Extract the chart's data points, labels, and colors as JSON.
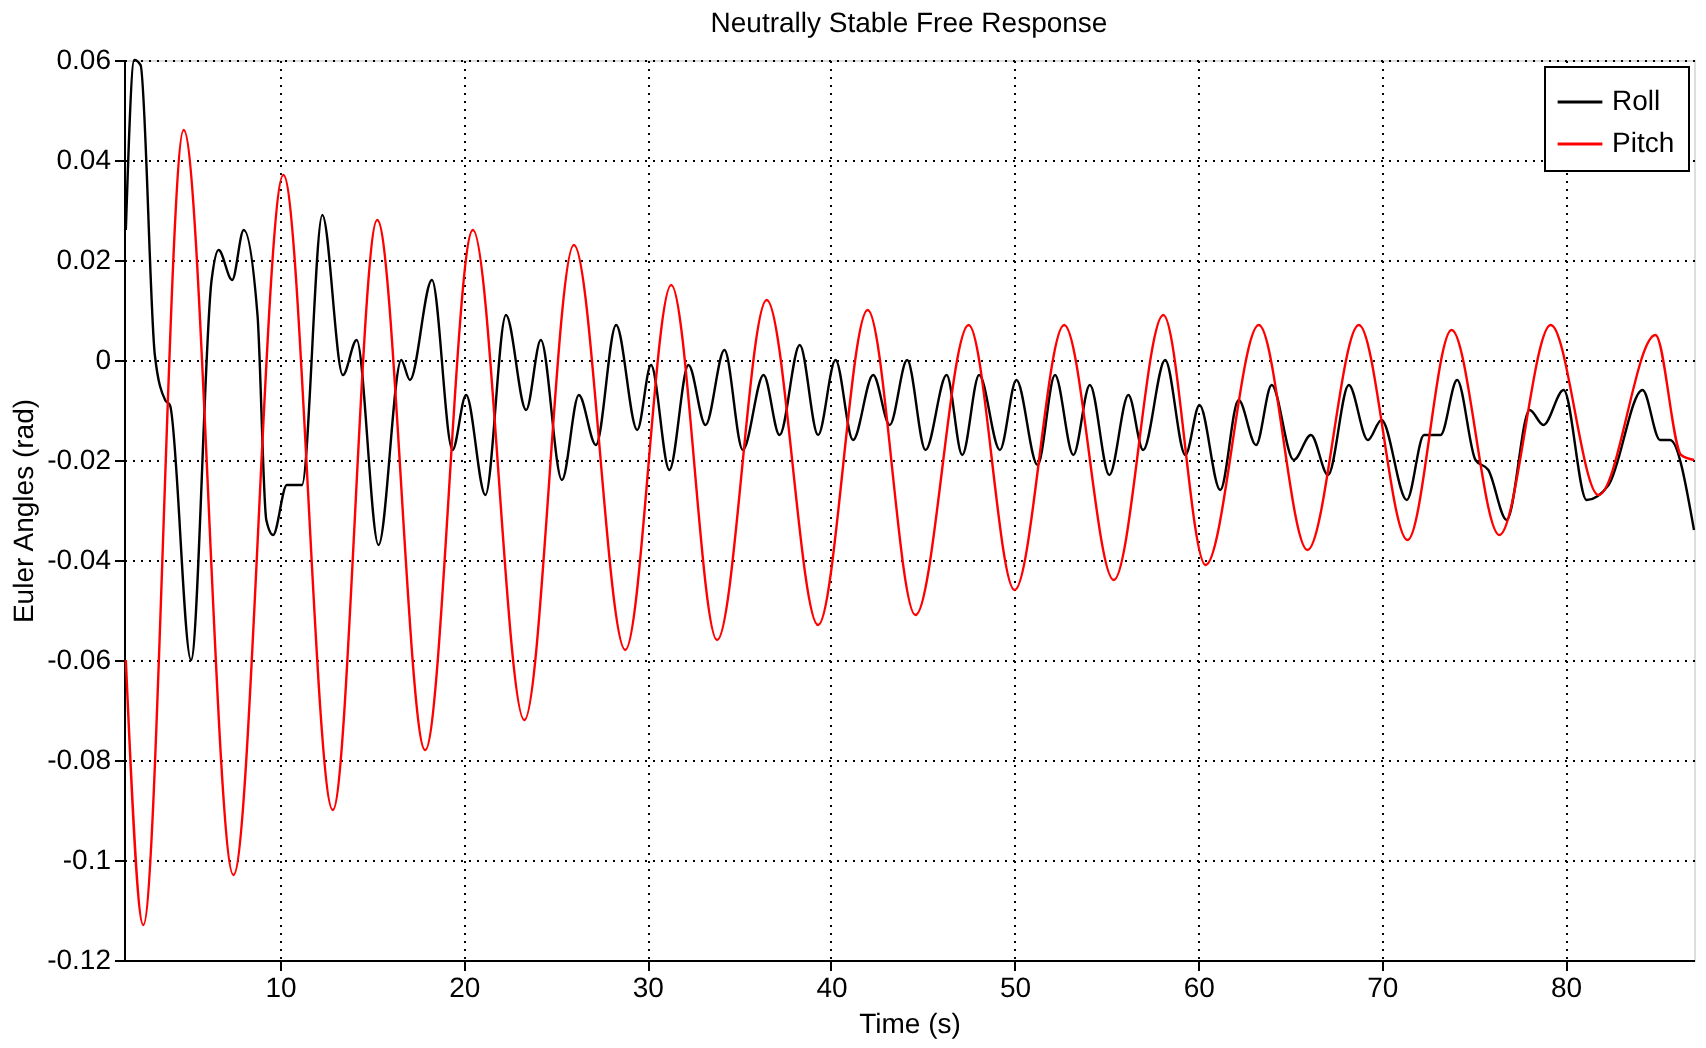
{
  "chart_data": {
    "type": "line",
    "title": "Neutrally Stable Free Response",
    "xlabel": "Time (s)",
    "ylabel": "Euler Angles (rad)",
    "xlim": [
      1.5,
      87
    ],
    "ylim": [
      -0.12,
      0.06
    ],
    "xticks": [
      10,
      20,
      30,
      40,
      50,
      60,
      70,
      80
    ],
    "yticks": [
      -0.12,
      -0.1,
      -0.08,
      -0.06,
      -0.04,
      -0.02,
      0,
      0.02,
      0.04,
      0.06
    ],
    "grid": true,
    "legend": "top right",
    "series": [
      {
        "name": "Roll",
        "color": "#000000",
        "x": [
          1.6,
          2.06,
          2.4,
          3.18,
          3.74,
          4.0,
          5.15,
          6.27,
          6.65,
          7.39,
          8.02,
          8.77,
          9.25,
          9.62,
          10.37,
          11.19,
          12.3,
          13.42,
          14.17,
          15.36,
          16.6,
          17.07,
          18.27,
          19.39,
          20.13,
          21.18,
          22.3,
          23.4,
          24.2,
          25.35,
          26.27,
          27.2,
          28.3,
          29.45,
          30.2,
          31.2,
          32.24,
          33.17,
          34.2,
          35.2,
          36.33,
          37.2,
          38.3,
          39.3,
          40.25,
          41.2,
          42.3,
          43.2,
          44.15,
          45.15,
          46.3,
          47.15,
          48.07,
          49.2,
          50.1,
          51.25,
          52.2,
          53.2,
          54.1,
          55.16,
          56.2,
          57.0,
          58.2,
          59.3,
          60.07,
          61.2,
          62.2,
          63.15,
          64.0,
          65.2,
          66.14,
          67.07,
          68.2,
          69.24,
          69.98,
          71.36,
          72.3,
          73.2,
          74.1,
          75.1,
          75.8,
          76.8,
          78.05,
          78.8,
          79.9,
          81.15,
          82.35,
          84.2,
          85.15,
          85.7,
          87.0
        ],
        "values": [
          0.026,
          0.06,
          0.059,
          0.001,
          -0.008,
          -0.009,
          -0.06,
          0.016,
          0.022,
          0.016,
          0.026,
          0.009,
          -0.032,
          -0.035,
          -0.025,
          -0.025,
          0.029,
          -0.003,
          0.004,
          -0.037,
          0.0,
          -0.004,
          0.016,
          -0.018,
          -0.007,
          -0.027,
          0.009,
          -0.01,
          0.004,
          -0.024,
          -0.007,
          -0.017,
          0.007,
          -0.014,
          -0.001,
          -0.022,
          -0.001,
          -0.013,
          0.002,
          -0.018,
          -0.003,
          -0.015,
          0.003,
          -0.015,
          0.0,
          -0.016,
          -0.003,
          -0.013,
          0.0,
          -0.018,
          -0.003,
          -0.019,
          -0.003,
          -0.018,
          -0.004,
          -0.021,
          -0.003,
          -0.019,
          -0.005,
          -0.023,
          -0.007,
          -0.018,
          0.0,
          -0.019,
          -0.009,
          -0.026,
          -0.008,
          -0.017,
          -0.005,
          -0.02,
          -0.015,
          -0.023,
          -0.005,
          -0.016,
          -0.012,
          -0.028,
          -0.015,
          -0.015,
          -0.004,
          -0.02,
          -0.022,
          -0.032,
          -0.01,
          -0.013,
          -0.006,
          -0.028,
          -0.025,
          -0.006,
          -0.016,
          -0.016,
          -0.034
        ]
      },
      {
        "name": "Pitch",
        "color": "#ff0000",
        "x": [
          1.6,
          2.55,
          4.75,
          7.46,
          10.18,
          12.87,
          15.29,
          17.9,
          20.5,
          23.3,
          26.0,
          28.8,
          31.3,
          33.8,
          36.5,
          39.3,
          42.0,
          44.6,
          47.5,
          50.0,
          52.7,
          55.4,
          58.1,
          60.4,
          63.3,
          65.95,
          68.75,
          71.4,
          73.8,
          76.4,
          79.2,
          81.8,
          84.9,
          86.3,
          87.0
        ],
        "values": [
          -0.06,
          -0.113,
          0.046,
          -0.103,
          0.037,
          -0.09,
          0.028,
          -0.078,
          0.026,
          -0.072,
          0.023,
          -0.058,
          0.015,
          -0.056,
          0.012,
          -0.053,
          0.01,
          -0.051,
          0.007,
          -0.046,
          0.007,
          -0.044,
          0.009,
          -0.041,
          0.007,
          -0.038,
          0.007,
          -0.036,
          0.006,
          -0.035,
          0.007,
          -0.027,
          0.005,
          -0.019,
          -0.02
        ]
      }
    ]
  }
}
